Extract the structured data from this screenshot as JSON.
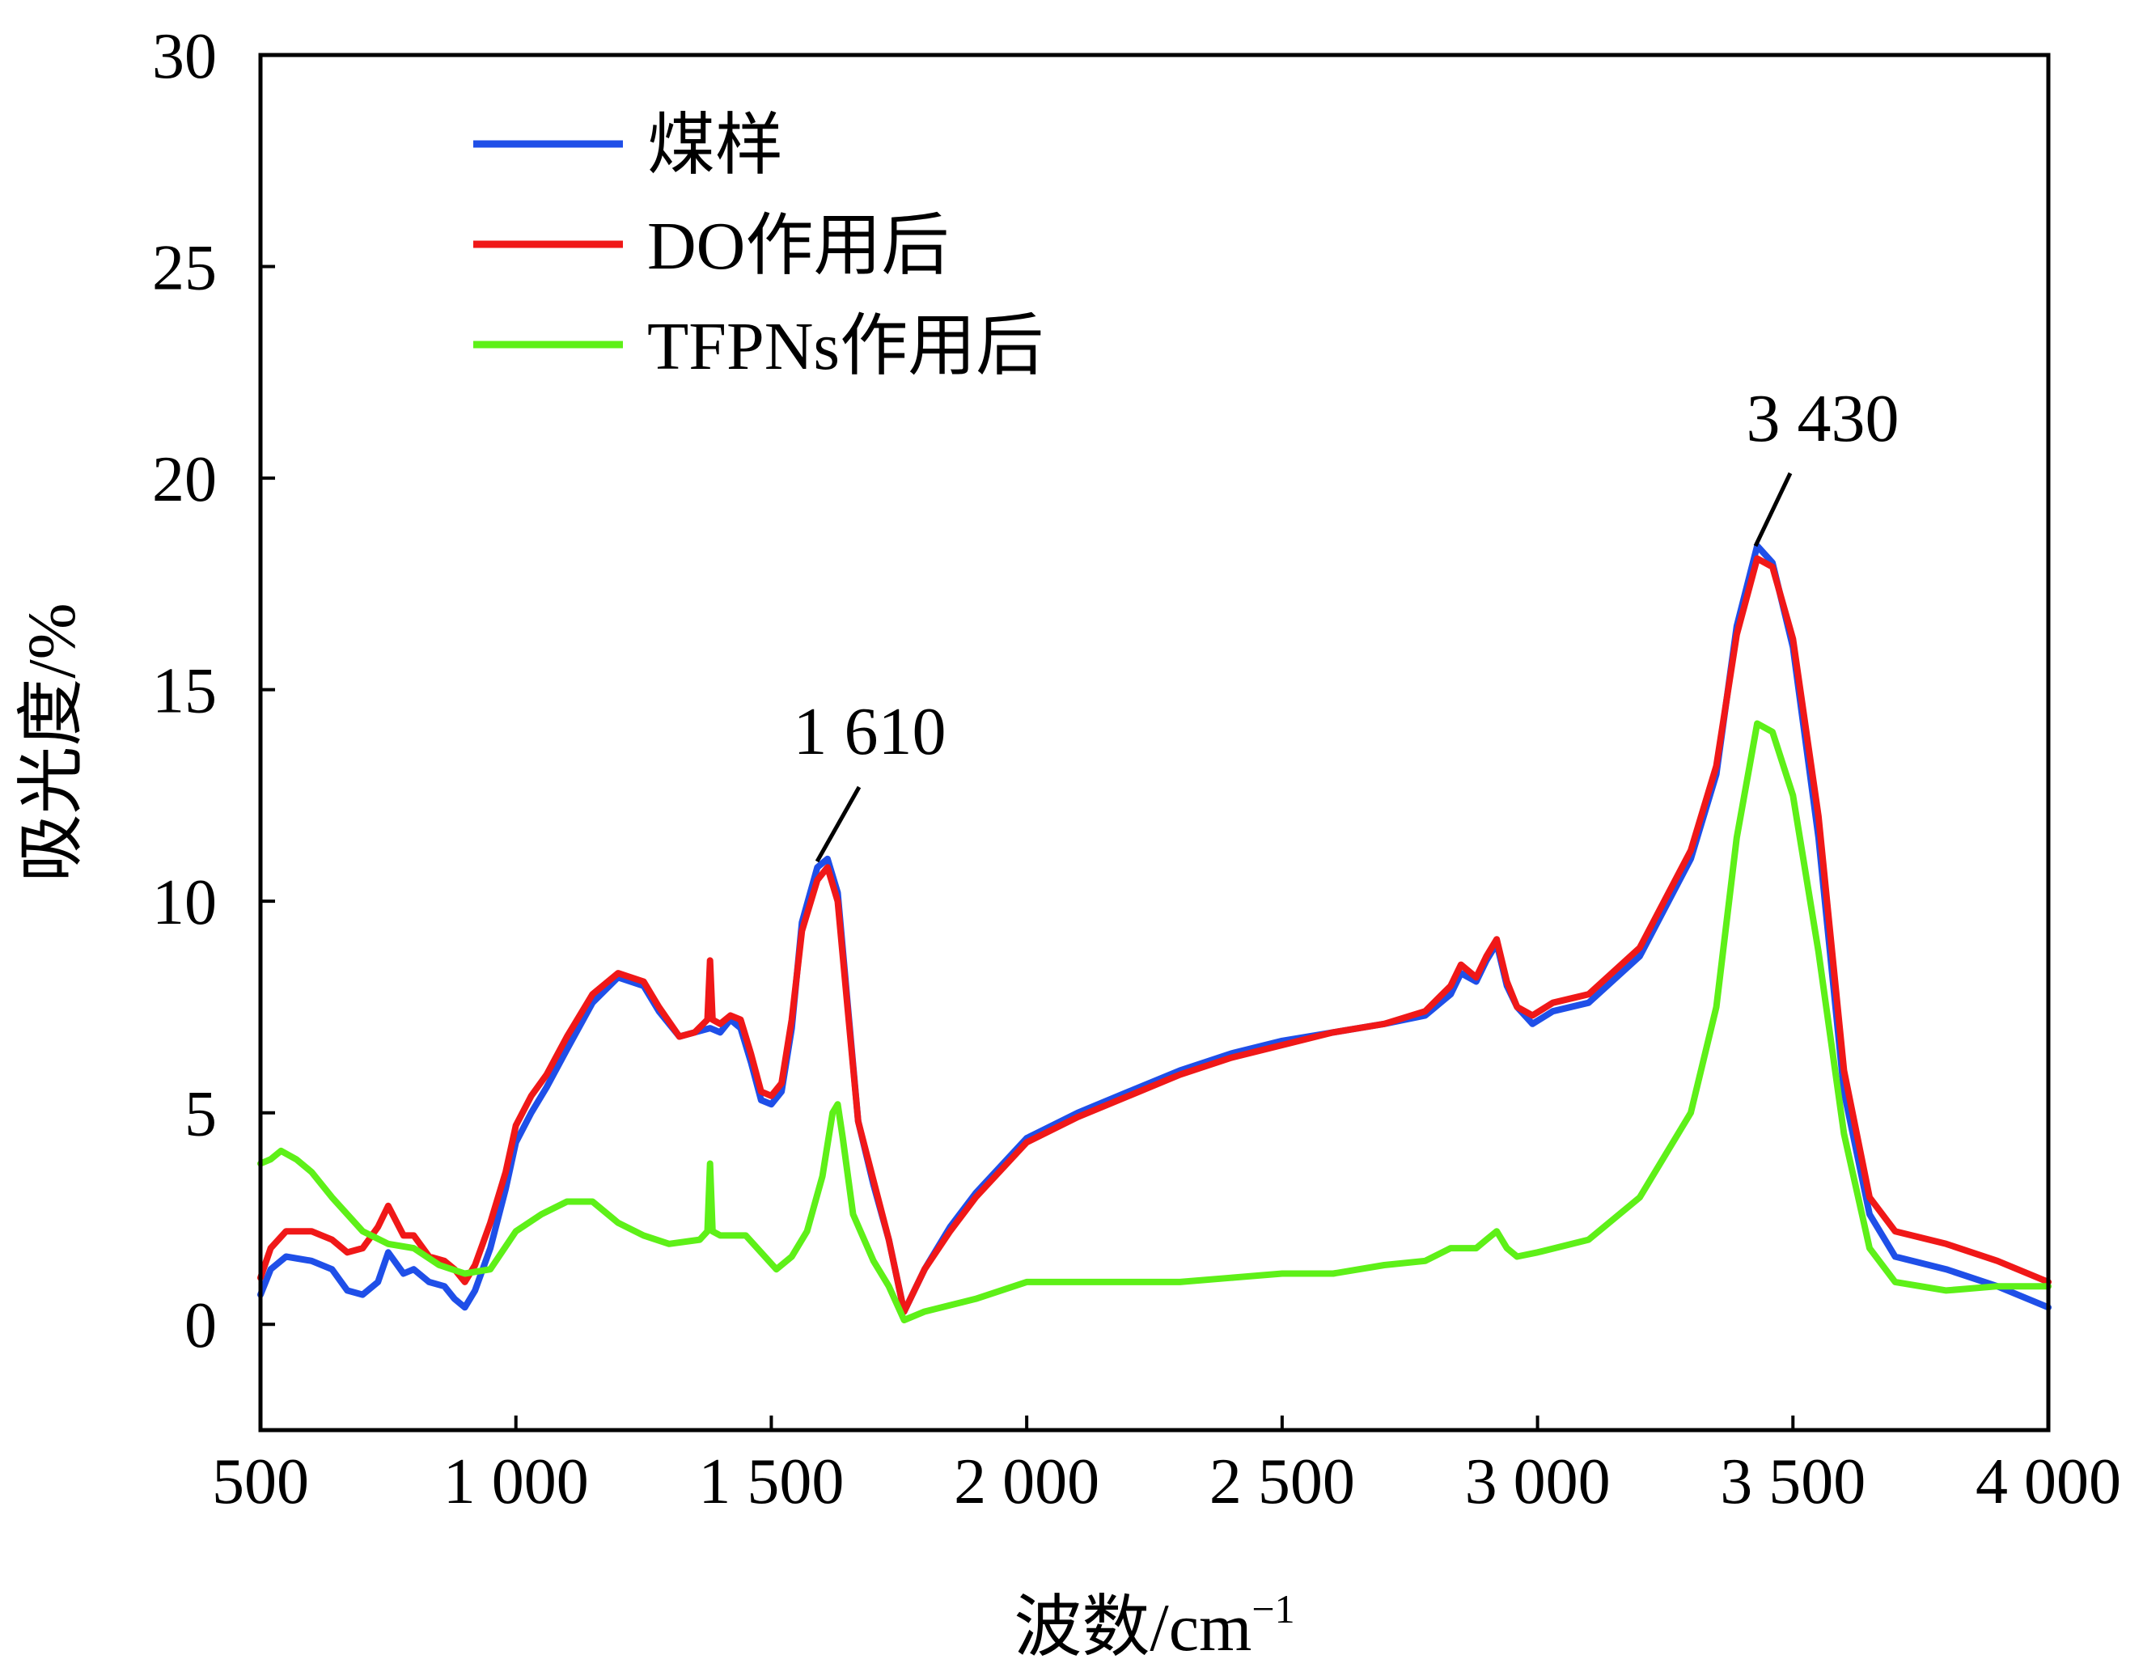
{
  "chart_data": {
    "type": "line",
    "xlabel": "波数/cm",
    "xlabel_sup": "−1",
    "ylabel": "吸光度/%",
    "xlim": [
      500,
      4000
    ],
    "ylim": [
      -2.5,
      30
    ],
    "xticks": [
      500,
      1000,
      1500,
      2000,
      2500,
      3000,
      3500,
      4000
    ],
    "xtick_labels": [
      "500",
      "1 000",
      "1 500",
      "2 000",
      "2 500",
      "3 000",
      "3 500",
      "4 000"
    ],
    "yticks": [
      0,
      5,
      10,
      15,
      20,
      25,
      30
    ],
    "ytick_labels": [
      "0",
      "5",
      "10",
      "15",
      "20",
      "25",
      "30"
    ],
    "grid": false,
    "legend_position": "top-left",
    "annotations": [
      {
        "text": "1 610",
        "x": 1610,
        "y": 11.0
      },
      {
        "text": "3 430",
        "x": 3430,
        "y": 18.4
      }
    ],
    "series": [
      {
        "name": "煤样",
        "color": "#1f4fe8",
        "points": [
          [
            500,
            0.7
          ],
          [
            520,
            1.3
          ],
          [
            550,
            1.6
          ],
          [
            600,
            1.5
          ],
          [
            640,
            1.3
          ],
          [
            670,
            0.8
          ],
          [
            700,
            0.7
          ],
          [
            730,
            1.0
          ],
          [
            750,
            1.7
          ],
          [
            780,
            1.2
          ],
          [
            800,
            1.3
          ],
          [
            830,
            1.0
          ],
          [
            860,
            0.9
          ],
          [
            880,
            0.6
          ],
          [
            900,
            0.4
          ],
          [
            920,
            0.8
          ],
          [
            950,
            1.8
          ],
          [
            980,
            3.2
          ],
          [
            1000,
            4.3
          ],
          [
            1030,
            5.0
          ],
          [
            1060,
            5.6
          ],
          [
            1100,
            6.5
          ],
          [
            1150,
            7.6
          ],
          [
            1200,
            8.2
          ],
          [
            1250,
            8.0
          ],
          [
            1280,
            7.4
          ],
          [
            1320,
            6.8
          ],
          [
            1350,
            6.9
          ],
          [
            1380,
            7.0
          ],
          [
            1400,
            6.9
          ],
          [
            1420,
            7.2
          ],
          [
            1440,
            7.0
          ],
          [
            1460,
            6.2
          ],
          [
            1480,
            5.3
          ],
          [
            1500,
            5.2
          ],
          [
            1520,
            5.5
          ],
          [
            1540,
            7.0
          ],
          [
            1560,
            9.5
          ],
          [
            1590,
            10.8
          ],
          [
            1610,
            11.0
          ],
          [
            1630,
            10.2
          ],
          [
            1650,
            7.5
          ],
          [
            1670,
            4.8
          ],
          [
            1700,
            3.3
          ],
          [
            1730,
            2.0
          ],
          [
            1760,
            0.3
          ],
          [
            1800,
            1.3
          ],
          [
            1850,
            2.3
          ],
          [
            1900,
            3.1
          ],
          [
            2000,
            4.4
          ],
          [
            2100,
            5.0
          ],
          [
            2200,
            5.5
          ],
          [
            2300,
            6.0
          ],
          [
            2400,
            6.4
          ],
          [
            2500,
            6.7
          ],
          [
            2600,
            6.9
          ],
          [
            2700,
            7.1
          ],
          [
            2780,
            7.3
          ],
          [
            2830,
            7.8
          ],
          [
            2850,
            8.3
          ],
          [
            2880,
            8.1
          ],
          [
            2900,
            8.6
          ],
          [
            2920,
            9.0
          ],
          [
            2940,
            8.0
          ],
          [
            2960,
            7.5
          ],
          [
            2990,
            7.1
          ],
          [
            3030,
            7.4
          ],
          [
            3100,
            7.6
          ],
          [
            3200,
            8.7
          ],
          [
            3300,
            11.0
          ],
          [
            3350,
            13.0
          ],
          [
            3390,
            16.5
          ],
          [
            3430,
            18.4
          ],
          [
            3460,
            18.0
          ],
          [
            3500,
            16.0
          ],
          [
            3550,
            11.5
          ],
          [
            3600,
            5.5
          ],
          [
            3650,
            2.6
          ],
          [
            3700,
            1.6
          ],
          [
            3800,
            1.3
          ],
          [
            3900,
            0.9
          ],
          [
            4000,
            0.4
          ]
        ]
      },
      {
        "name": "DO作用后",
        "color": "#f01818",
        "points": [
          [
            500,
            1.1
          ],
          [
            520,
            1.8
          ],
          [
            550,
            2.2
          ],
          [
            600,
            2.2
          ],
          [
            640,
            2.0
          ],
          [
            670,
            1.7
          ],
          [
            700,
            1.8
          ],
          [
            730,
            2.3
          ],
          [
            750,
            2.8
          ],
          [
            780,
            2.1
          ],
          [
            800,
            2.1
          ],
          [
            830,
            1.6
          ],
          [
            860,
            1.5
          ],
          [
            880,
            1.3
          ],
          [
            900,
            1.0
          ],
          [
            920,
            1.4
          ],
          [
            950,
            2.4
          ],
          [
            980,
            3.6
          ],
          [
            1000,
            4.7
          ],
          [
            1030,
            5.4
          ],
          [
            1060,
            5.9
          ],
          [
            1100,
            6.8
          ],
          [
            1150,
            7.8
          ],
          [
            1200,
            8.3
          ],
          [
            1250,
            8.1
          ],
          [
            1280,
            7.5
          ],
          [
            1320,
            6.8
          ],
          [
            1350,
            6.9
          ],
          [
            1375,
            7.2
          ],
          [
            1380,
            8.6
          ],
          [
            1385,
            7.2
          ],
          [
            1400,
            7.1
          ],
          [
            1420,
            7.3
          ],
          [
            1440,
            7.2
          ],
          [
            1460,
            6.4
          ],
          [
            1480,
            5.5
          ],
          [
            1500,
            5.4
          ],
          [
            1520,
            5.7
          ],
          [
            1540,
            7.2
          ],
          [
            1560,
            9.3
          ],
          [
            1590,
            10.5
          ],
          [
            1610,
            10.8
          ],
          [
            1630,
            10.0
          ],
          [
            1650,
            7.4
          ],
          [
            1670,
            4.8
          ],
          [
            1700,
            3.4
          ],
          [
            1730,
            2.0
          ],
          [
            1760,
            0.3
          ],
          [
            1800,
            1.3
          ],
          [
            1850,
            2.2
          ],
          [
            1900,
            3.0
          ],
          [
            2000,
            4.3
          ],
          [
            2100,
            4.9
          ],
          [
            2200,
            5.4
          ],
          [
            2300,
            5.9
          ],
          [
            2400,
            6.3
          ],
          [
            2500,
            6.6
          ],
          [
            2600,
            6.9
          ],
          [
            2700,
            7.1
          ],
          [
            2780,
            7.4
          ],
          [
            2830,
            8.0
          ],
          [
            2850,
            8.5
          ],
          [
            2880,
            8.2
          ],
          [
            2900,
            8.7
          ],
          [
            2920,
            9.1
          ],
          [
            2940,
            8.1
          ],
          [
            2960,
            7.5
          ],
          [
            2990,
            7.3
          ],
          [
            3030,
            7.6
          ],
          [
            3100,
            7.8
          ],
          [
            3200,
            8.9
          ],
          [
            3300,
            11.2
          ],
          [
            3350,
            13.2
          ],
          [
            3390,
            16.3
          ],
          [
            3430,
            18.1
          ],
          [
            3460,
            17.9
          ],
          [
            3500,
            16.2
          ],
          [
            3550,
            12.0
          ],
          [
            3600,
            6.0
          ],
          [
            3650,
            3.0
          ],
          [
            3700,
            2.2
          ],
          [
            3800,
            1.9
          ],
          [
            3900,
            1.5
          ],
          [
            4000,
            1.0
          ]
        ]
      },
      {
        "name": "TFPNs作用后",
        "color": "#5ef018",
        "points": [
          [
            500,
            3.8
          ],
          [
            520,
            3.9
          ],
          [
            540,
            4.1
          ],
          [
            570,
            3.9
          ],
          [
            600,
            3.6
          ],
          [
            640,
            3.0
          ],
          [
            670,
            2.6
          ],
          [
            700,
            2.2
          ],
          [
            750,
            1.9
          ],
          [
            800,
            1.8
          ],
          [
            850,
            1.4
          ],
          [
            900,
            1.2
          ],
          [
            950,
            1.3
          ],
          [
            1000,
            2.2
          ],
          [
            1050,
            2.6
          ],
          [
            1100,
            2.9
          ],
          [
            1150,
            2.9
          ],
          [
            1200,
            2.4
          ],
          [
            1250,
            2.1
          ],
          [
            1300,
            1.9
          ],
          [
            1360,
            2.0
          ],
          [
            1375,
            2.2
          ],
          [
            1380,
            3.8
          ],
          [
            1385,
            2.2
          ],
          [
            1400,
            2.1
          ],
          [
            1450,
            2.1
          ],
          [
            1480,
            1.7
          ],
          [
            1510,
            1.3
          ],
          [
            1540,
            1.6
          ],
          [
            1570,
            2.2
          ],
          [
            1600,
            3.5
          ],
          [
            1620,
            5.0
          ],
          [
            1630,
            5.2
          ],
          [
            1640,
            4.4
          ],
          [
            1660,
            2.6
          ],
          [
            1700,
            1.5
          ],
          [
            1730,
            0.9
          ],
          [
            1760,
            0.1
          ],
          [
            1800,
            0.3
          ],
          [
            1900,
            0.6
          ],
          [
            2000,
            1.0
          ],
          [
            2100,
            1.0
          ],
          [
            2200,
            1.0
          ],
          [
            2300,
            1.0
          ],
          [
            2400,
            1.1
          ],
          [
            2500,
            1.2
          ],
          [
            2600,
            1.2
          ],
          [
            2700,
            1.4
          ],
          [
            2780,
            1.5
          ],
          [
            2830,
            1.8
          ],
          [
            2850,
            1.8
          ],
          [
            2880,
            1.8
          ],
          [
            2900,
            2.0
          ],
          [
            2920,
            2.2
          ],
          [
            2940,
            1.8
          ],
          [
            2960,
            1.6
          ],
          [
            3000,
            1.7
          ],
          [
            3100,
            2.0
          ],
          [
            3200,
            3.0
          ],
          [
            3300,
            5.0
          ],
          [
            3350,
            7.5
          ],
          [
            3390,
            11.5
          ],
          [
            3430,
            14.2
          ],
          [
            3460,
            14.0
          ],
          [
            3500,
            12.5
          ],
          [
            3550,
            8.8
          ],
          [
            3600,
            4.5
          ],
          [
            3650,
            1.8
          ],
          [
            3700,
            1.0
          ],
          [
            3800,
            0.8
          ],
          [
            3900,
            0.9
          ],
          [
            4000,
            0.9
          ]
        ]
      }
    ]
  }
}
